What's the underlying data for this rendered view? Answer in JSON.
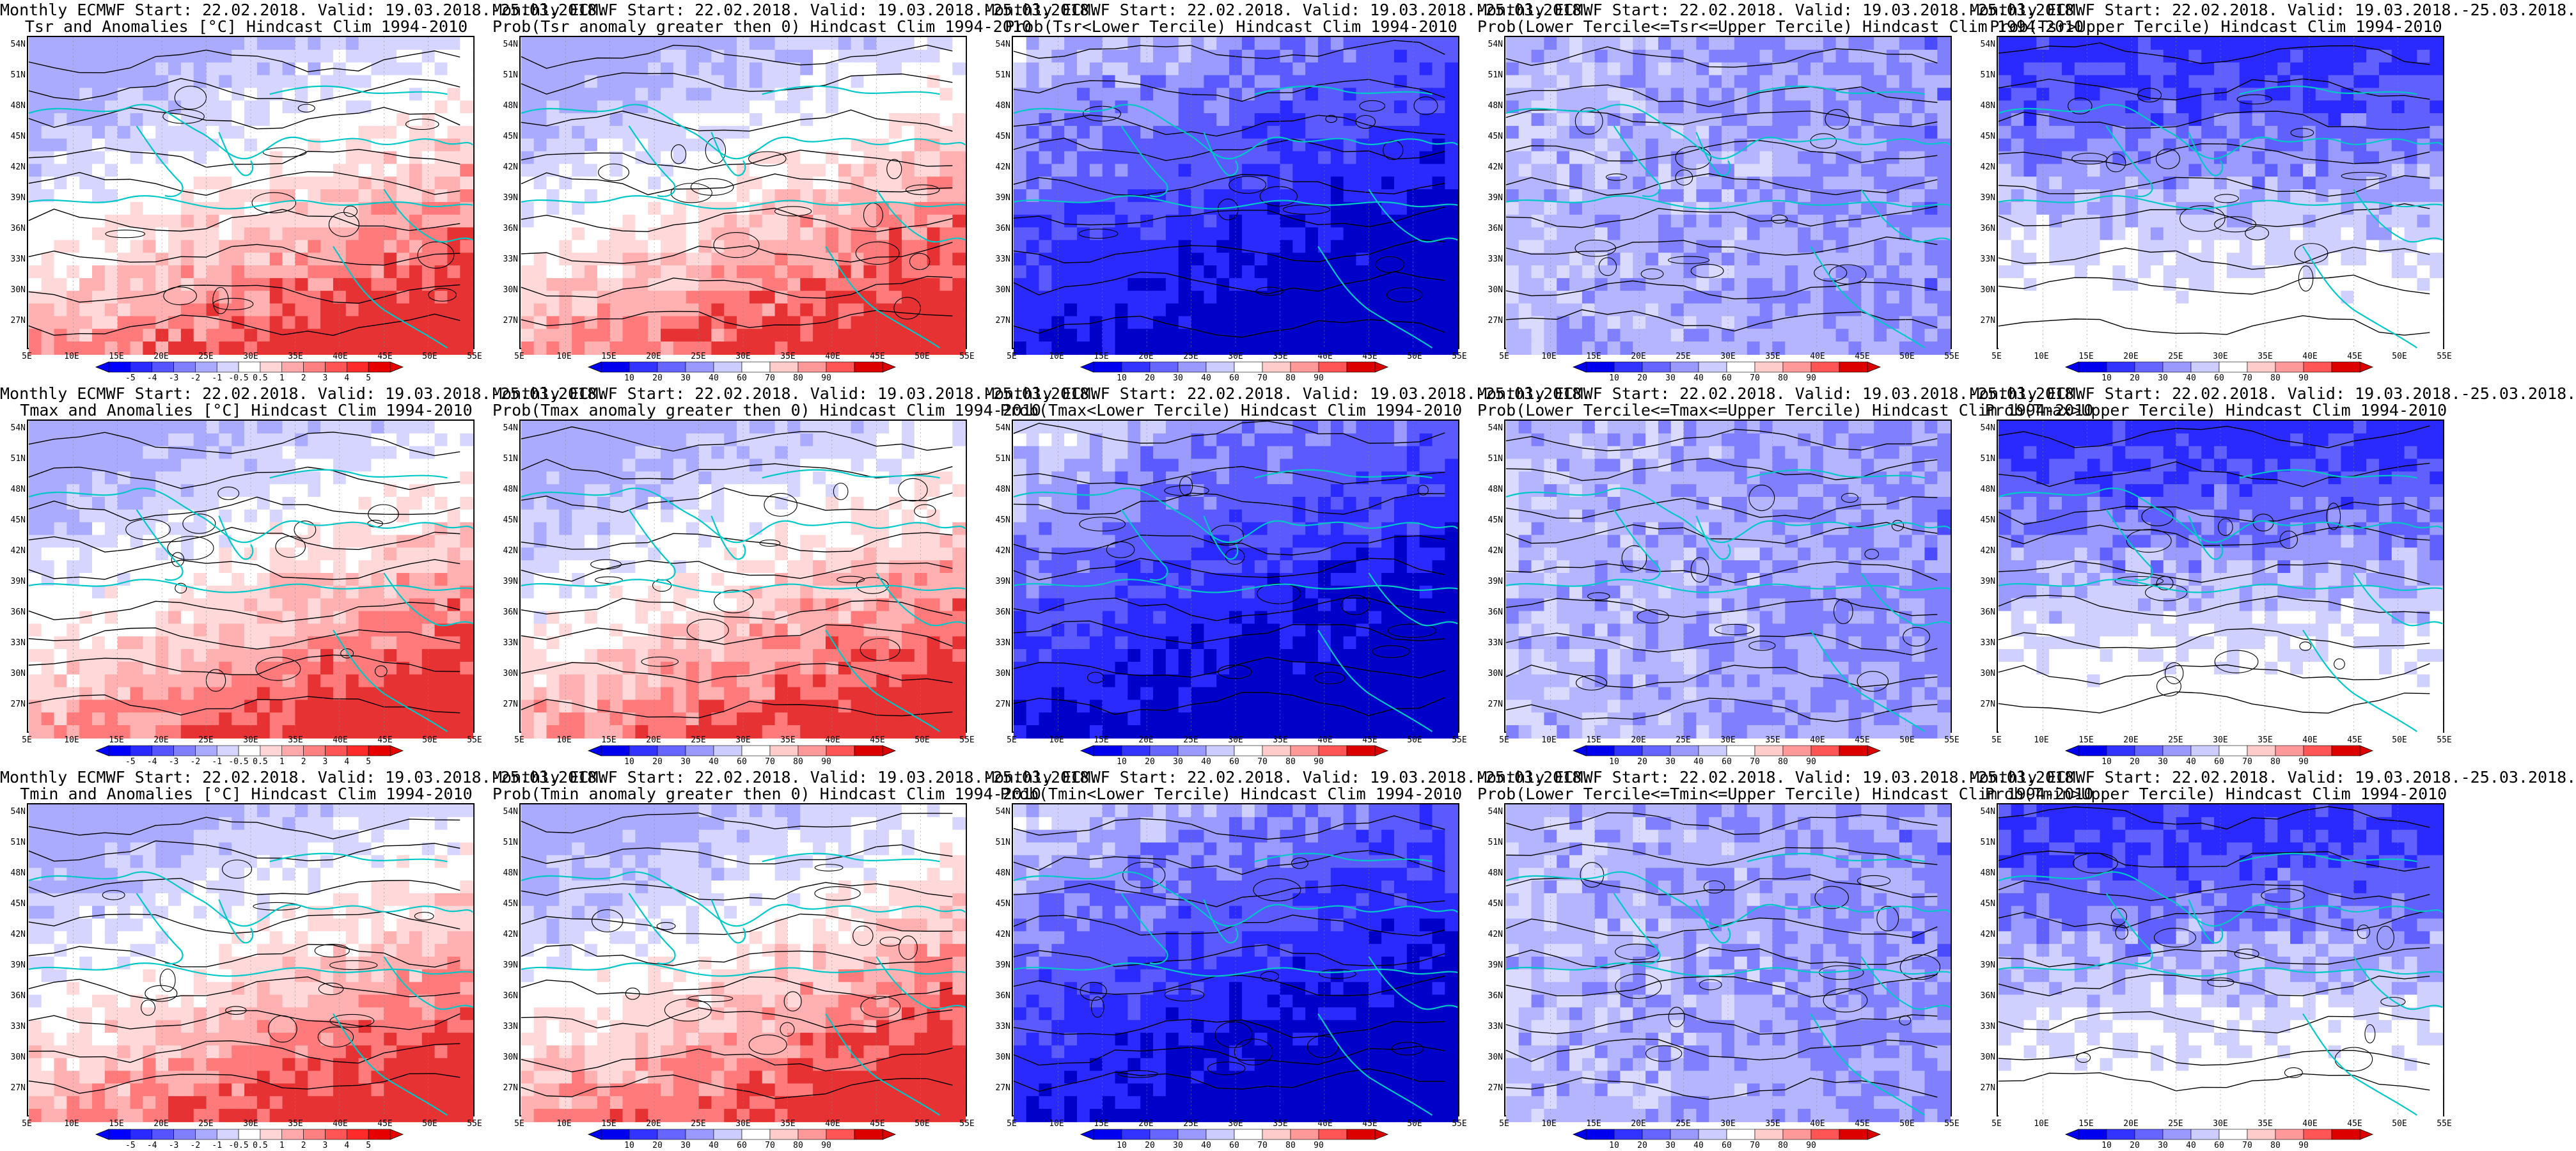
{
  "panels": [
    {
      "line1": "Monthly ECMWF Start: 22.02.2018. Valid: 19.03.2018.-25.03.2018.",
      "line2": "Tsr and Anomalies [°C] Hindcast Clim 1994-2010",
      "kind": "anom",
      "scale": "anom"
    },
    {
      "line1": "Monthly ECMWF Start: 22.02.2018. Valid: 19.03.2018.-25.03.2018.",
      "line2": "Prob(Tsr anomaly greater then 0) Hindcast Clim 1994-2010",
      "kind": "pos",
      "scale": "prob"
    },
    {
      "line1": "Monthly ECMWF Start: 22.02.2018. Valid: 19.03.2018.-25.03.2018.",
      "line2": "Prob(Tsr<Lower Tercile) Hindcast Clim 1994-2010",
      "kind": "lower",
      "scale": "prob"
    },
    {
      "line1": "Monthly ECMWF Start: 22.02.2018. Valid: 19.03.2018.-25.03.2018.",
      "line2": "Prob(Lower Tercile<=Tsr<=Upper Tercile) Hindcast Clim 1994-2010",
      "kind": "middle",
      "scale": "prob"
    },
    {
      "line1": "Monthly ECMWF Start: 22.02.2018. Valid: 19.03.2018.-25.03.2018.",
      "line2": "Prob(Tsr>Upper Tercile) Hindcast Clim 1994-2010",
      "kind": "upper",
      "scale": "prob"
    },
    {
      "line1": "Monthly ECMWF Start: 22.02.2018. Valid: 19.03.2018.-25.03.2018.",
      "line2": "Tmax and Anomalies [°C] Hindcast Clim 1994-2010",
      "kind": "anom",
      "scale": "anom"
    },
    {
      "line1": "Monthly ECMWF Start: 22.02.2018. Valid: 19.03.2018.-25.03.2018.",
      "line2": "Prob(Tmax anomaly greater then 0) Hindcast Clim 1994-2010",
      "kind": "pos",
      "scale": "prob"
    },
    {
      "line1": "Monthly ECMWF Start: 22.02.2018. Valid: 19.03.2018.-25.03.2018.",
      "line2": "Prob(Tmax<Lower Tercile) Hindcast Clim 1994-2010",
      "kind": "lower",
      "scale": "prob"
    },
    {
      "line1": "Monthly ECMWF Start: 22.02.2018. Valid: 19.03.2018.-25.03.2018.",
      "line2": "Prob(Lower Tercile<=Tmax<=Upper Tercile) Hindcast Clim 1994-2010",
      "kind": "middle",
      "scale": "prob"
    },
    {
      "line1": "Monthly ECMWF Start: 22.02.2018. Valid: 19.03.2018.-25.03.2018.",
      "line2": "Prob(Tmax>Upper Tercile) Hindcast Clim 1994-2010",
      "kind": "upper",
      "scale": "prob"
    },
    {
      "line1": "Monthly ECMWF Start: 22.02.2018. Valid: 19.03.2018.-25.03.2018.",
      "line2": "Tmin and Anomalies [°C] Hindcast Clim 1994-2010",
      "kind": "anom",
      "scale": "anom"
    },
    {
      "line1": "Monthly ECMWF Start: 22.02.2018. Valid: 19.03.2018.-25.03.2018.",
      "line2": "Prob(Tmin anomaly greater then 0) Hindcast Clim 1994-2010",
      "kind": "pos",
      "scale": "prob"
    },
    {
      "line1": "Monthly ECMWF Start: 22.02.2018. Valid: 19.03.2018.-25.03.2018.",
      "line2": "Prob(Tmin<Lower Tercile) Hindcast Clim 1994-2010",
      "kind": "lower",
      "scale": "prob"
    },
    {
      "line1": "Monthly ECMWF Start: 22.02.2018. Valid: 19.03.2018.-25.03.2018.",
      "line2": "Prob(Lower Tercile<=Tmin<=Upper Tercile) Hindcast Clim 1994-2010",
      "kind": "middle",
      "scale": "prob"
    },
    {
      "line1": "Monthly ECMWF Start: 22.02.2018. Valid: 19.03.2018.-25.03.2018.",
      "line2": "Prob(Tmin>Upper Tercile) Hindcast Clim 1994-2010",
      "kind": "upper",
      "scale": "prob"
    }
  ],
  "lat_labels": [
    "54N",
    "51N",
    "48N",
    "45N",
    "42N",
    "39N",
    "36N",
    "33N",
    "30N",
    "27N"
  ],
  "lon_labels": [
    "5E",
    "10E",
    "15E",
    "20E",
    "25E",
    "30E",
    "35E",
    "40E",
    "45E",
    "50E",
    "55E"
  ],
  "scales": {
    "anom": {
      "labels": [
        "-5",
        "-4",
        "-3",
        "-2",
        "-1",
        "-0.5",
        "0.5",
        "1",
        "2",
        "3",
        "4",
        "5"
      ],
      "colors": [
        "#0000ff",
        "#2a2aff",
        "#5555ff",
        "#8080ff",
        "#aaaaff",
        "#d5d5ff",
        "#ffffff",
        "#ffd5d5",
        "#ffaaaa",
        "#ff8080",
        "#ff5555",
        "#ff2a2a",
        "#e60000"
      ]
    },
    "prob": {
      "labels": [
        "10",
        "20",
        "30",
        "40",
        "60",
        "70",
        "80",
        "90"
      ],
      "colors": [
        "#0000ee",
        "#3333ff",
        "#6666ff",
        "#9999ff",
        "#ccccff",
        "#ffffff",
        "#ffcccc",
        "#ff9999",
        "#ff5555",
        "#dd0000"
      ]
    }
  },
  "palettes": {
    "background": "#ffffff",
    "coastline": "#00c8c8",
    "contour": "#000000"
  }
}
